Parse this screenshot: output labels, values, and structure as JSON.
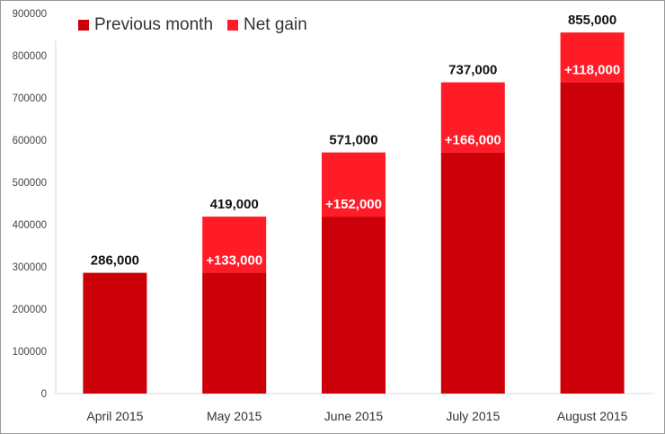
{
  "chart_data": {
    "type": "bar",
    "stacked": true,
    "categories": [
      "April 2015",
      "May 2015",
      "June 2015",
      "July 2015",
      "August 2015"
    ],
    "series": [
      {
        "name": "Previous month",
        "color": "#cc0008",
        "values": [
          286000,
          286000,
          419000,
          571000,
          737000
        ]
      },
      {
        "name": "Net gain",
        "color": "#ff1c27",
        "values": [
          0,
          133000,
          152000,
          166000,
          118000
        ]
      }
    ],
    "total_labels": [
      "286,000",
      "419,000",
      "571,000",
      "737,000",
      "855,000"
    ],
    "gain_labels": [
      "",
      "+133,000",
      "+152,000",
      "+166,000",
      "+118,000"
    ],
    "ylim": [
      0,
      900000
    ],
    "yticks": [
      0,
      100000,
      200000,
      300000,
      400000,
      500000,
      600000,
      700000,
      800000,
      900000
    ],
    "grid": false,
    "legend": "top-left"
  }
}
